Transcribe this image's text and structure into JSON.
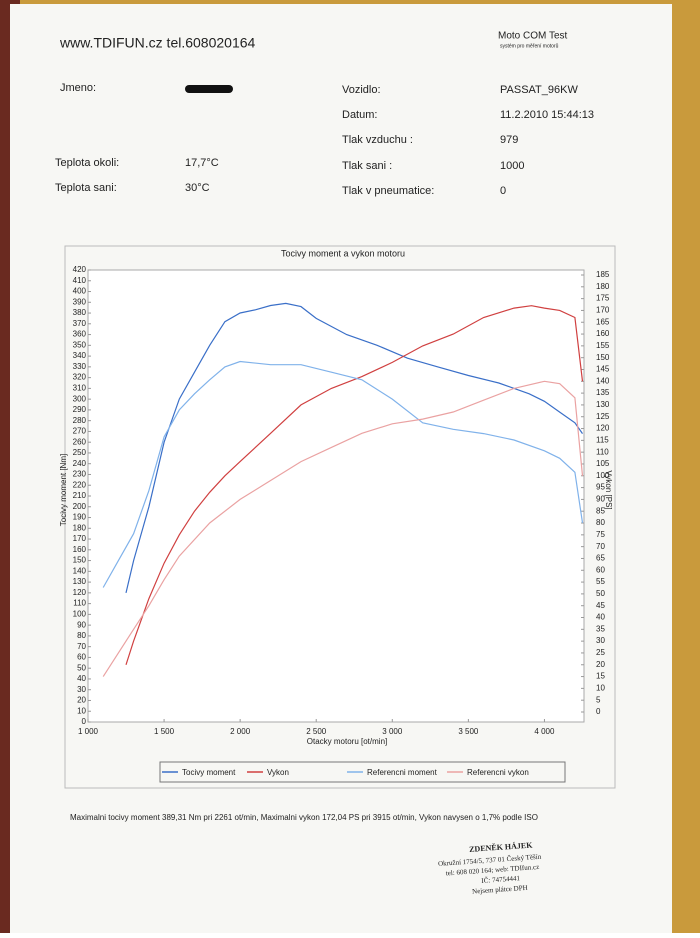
{
  "header": {
    "site": "www.TDIFUN.cz tel.608020164",
    "brand": "Moto COM Test",
    "brand_sub": "systém pro měření motorů"
  },
  "fields": [
    {
      "label": "Jmeno:"
    },
    {
      "label": "Vozidlo:",
      "value": "PASSAT_96KW"
    },
    {
      "label": "Datum:",
      "value": "11.2.2010 15:44:13"
    },
    {
      "label": "Tlak vzduchu :",
      "value": "979"
    },
    {
      "label": "Teplota okoli:",
      "value": "17,7°C"
    },
    {
      "label": "Tlak sani :",
      "value": "1000"
    },
    {
      "label": "Teplota sani:",
      "value": "30°C"
    },
    {
      "label": "Tlak v pneumatice:",
      "value": "0"
    }
  ],
  "chart_data": {
    "type": "line",
    "title": "Tocivy moment a vykon motoru",
    "x_label": "Otacky motoru [ot/min]",
    "y_label": "Tocivy moment [Nm]",
    "y2_label": "Vykon [PS]",
    "xlim": [
      1000,
      4260
    ],
    "ylim": [
      0,
      420
    ],
    "y2lim": [
      0,
      185
    ],
    "xticks": [
      {
        "value": 1000,
        "label": "1 000"
      },
      {
        "value": 1500,
        "label": "1 500"
      },
      {
        "value": 2000,
        "label": "2 000"
      },
      {
        "value": 2500,
        "label": "2 500"
      },
      {
        "value": 3000,
        "label": "3 000"
      },
      {
        "value": 3500,
        "label": "3 500"
      },
      {
        "value": 4000,
        "label": "4 000"
      }
    ],
    "yticks": [
      0,
      10,
      20,
      30,
      40,
      50,
      60,
      70,
      80,
      90,
      100,
      110,
      120,
      130,
      140,
      150,
      160,
      170,
      180,
      190,
      200,
      210,
      220,
      230,
      240,
      250,
      260,
      270,
      280,
      290,
      300,
      310,
      320,
      330,
      340,
      350,
      360,
      370,
      380,
      390,
      400,
      410,
      420
    ],
    "y2ticks": [
      0,
      5,
      10,
      15,
      20,
      25,
      30,
      35,
      40,
      45,
      50,
      55,
      60,
      65,
      70,
      75,
      80,
      85,
      90,
      95,
      100,
      105,
      110,
      115,
      120,
      125,
      130,
      135,
      140,
      145,
      150,
      155,
      160,
      165,
      170,
      175,
      180,
      185
    ],
    "grid": false,
    "series": [
      {
        "name": "Tocivy moment",
        "color": "#3a6fc8",
        "axis": "y",
        "x": [
          1250,
          1300,
          1400,
          1500,
          1600,
          1700,
          1800,
          1900,
          2000,
          2100,
          2200,
          2300,
          2400,
          2500,
          2700,
          2900,
          3100,
          3300,
          3500,
          3700,
          3900,
          4000,
          4100,
          4200,
          4250
        ],
        "values": [
          120,
          150,
          200,
          260,
          300,
          325,
          350,
          372,
          380,
          383,
          387,
          389,
          386,
          375,
          360,
          350,
          338,
          330,
          322,
          315,
          305,
          298,
          288,
          278,
          268
        ]
      },
      {
        "name": "Vykon",
        "color": "#d04040",
        "axis": "y2",
        "x": [
          1250,
          1300,
          1400,
          1500,
          1600,
          1700,
          1800,
          1900,
          2000,
          2200,
          2400,
          2600,
          2800,
          3000,
          3200,
          3400,
          3600,
          3800,
          3915,
          4000,
          4100,
          4200,
          4250
        ],
        "values": [
          20,
          30,
          48,
          63,
          75,
          85,
          93,
          100,
          106,
          118,
          130,
          137,
          142,
          148,
          155,
          160,
          167,
          171,
          172,
          171,
          170,
          167,
          140
        ]
      },
      {
        "name": "Referencni moment",
        "color": "#80b2ea",
        "axis": "y",
        "x": [
          1100,
          1200,
          1300,
          1400,
          1500,
          1600,
          1700,
          1800,
          1900,
          2000,
          2200,
          2400,
          2600,
          2800,
          3000,
          3200,
          3400,
          3600,
          3800,
          4000,
          4100,
          4200,
          4250
        ],
        "values": [
          125,
          150,
          175,
          215,
          265,
          290,
          305,
          318,
          330,
          335,
          332,
          332,
          325,
          318,
          300,
          278,
          272,
          268,
          262,
          252,
          245,
          232,
          185
        ]
      },
      {
        "name": "Referencni vykon",
        "color": "#eaa2a2",
        "axis": "y2",
        "x": [
          1100,
          1200,
          1300,
          1400,
          1500,
          1600,
          1800,
          2000,
          2200,
          2400,
          2600,
          2800,
          3000,
          3200,
          3400,
          3600,
          3800,
          4000,
          4100,
          4200,
          4250
        ],
        "values": [
          15,
          25,
          35,
          45,
          56,
          66,
          80,
          90,
          98,
          106,
          112,
          118,
          122,
          124,
          127,
          132,
          137,
          140,
          139,
          133,
          100
        ]
      }
    ]
  },
  "summary": "Maximalni tocivy moment 389,31 Nm pri 2261 ot/min,  Maximalni vykon 172,04 PS pri 3915 ot/min,  Vykon navysen o 1,7% podle ISO",
  "stamp": [
    "ZDENĚK HÁJEK",
    "Okružní 1754/5, 737 01 Český Těšín",
    "tel: 608 020 164; web: TDIfun.cz",
    "IČ: 74754441",
    "Nejsem plátce DPH"
  ]
}
